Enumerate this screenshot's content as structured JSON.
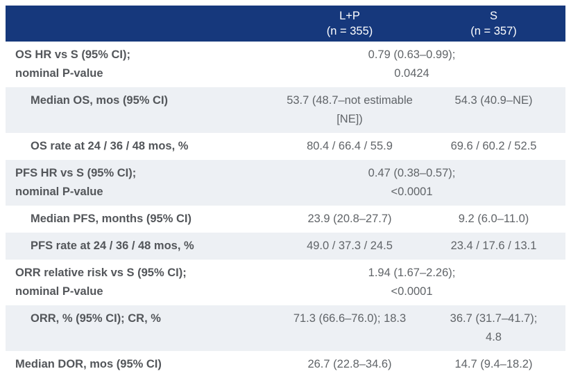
{
  "colors": {
    "header_bg": "#16387C",
    "header_text": "#FFFFFF",
    "alt_row_bg": "#EDF0F4",
    "label_text": "#53565A",
    "value_text": "#606468"
  },
  "header": {
    "col_lp": {
      "treatment": "L+P",
      "n": "(n = 355)"
    },
    "col_s": {
      "treatment": "S",
      "n": "(n = 357)"
    }
  },
  "rows": [
    {
      "label_line1": "OS HR vs S (95% CI);",
      "label_line2": "nominal P-value",
      "value_line1": "0.79 (0.63–0.99);",
      "value_line2": "0.0424"
    },
    {
      "label_line1": "Median OS, mos (95% CI)",
      "lp_line1": "53.7 (48.7–not estimable",
      "lp_line2": "[NE])",
      "s_line1": "54.3 (40.9–NE)"
    },
    {
      "label_line1": "OS rate at 24 / 36 / 48 mos, %",
      "lp_line1": "80.4 / 66.4 / 55.9",
      "s_line1": "69.6 / 60.2 / 52.5"
    },
    {
      "label_line1": "PFS HR vs S (95% CI);",
      "label_line2": "nominal P-value",
      "value_line1": "0.47 (0.38–0.57);",
      "value_line2": "<0.0001"
    },
    {
      "label_line1": "Median PFS, months (95% CI)",
      "lp_line1": "23.9 (20.8–27.7)",
      "s_line1": "9.2 (6.0–11.0)"
    },
    {
      "label_line1": "PFS rate at 24 / 36 / 48 mos, %",
      "lp_line1": "49.0 / 37.3 / 24.5",
      "s_line1": "23.4 / 17.6 / 13.1"
    },
    {
      "label_line1": "ORR relative risk vs S (95% CI);",
      "label_line2": "nominal P-value",
      "value_line1": "1.94 (1.67–2.26);",
      "value_line2": "<0.0001"
    },
    {
      "label_line1": "ORR, % (95% CI); CR, %",
      "lp_line1": "71.3 (66.6–76.0); 18.3",
      "s_line1": "36.7 (31.7–41.7);",
      "s_line2": "4.8"
    },
    {
      "label_line1": "Median DOR, mos (95% CI)",
      "lp_line1": "26.7 (22.8–34.6)",
      "s_line1": "14.7 (9.4–18.2)"
    }
  ]
}
